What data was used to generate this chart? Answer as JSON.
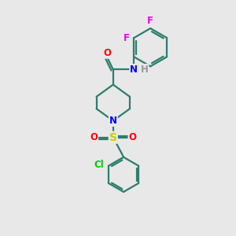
{
  "bg_color": "#e8e8e8",
  "bond_color": "#2d7d6e",
  "bond_width": 1.6,
  "atom_colors": {
    "F": "#ee00ee",
    "O": "#ff0000",
    "N": "#0000ff",
    "S": "#cccc00",
    "Cl": "#00cc00",
    "H": "#999999",
    "C": "#2d7d6e"
  },
  "fs": 8.5
}
